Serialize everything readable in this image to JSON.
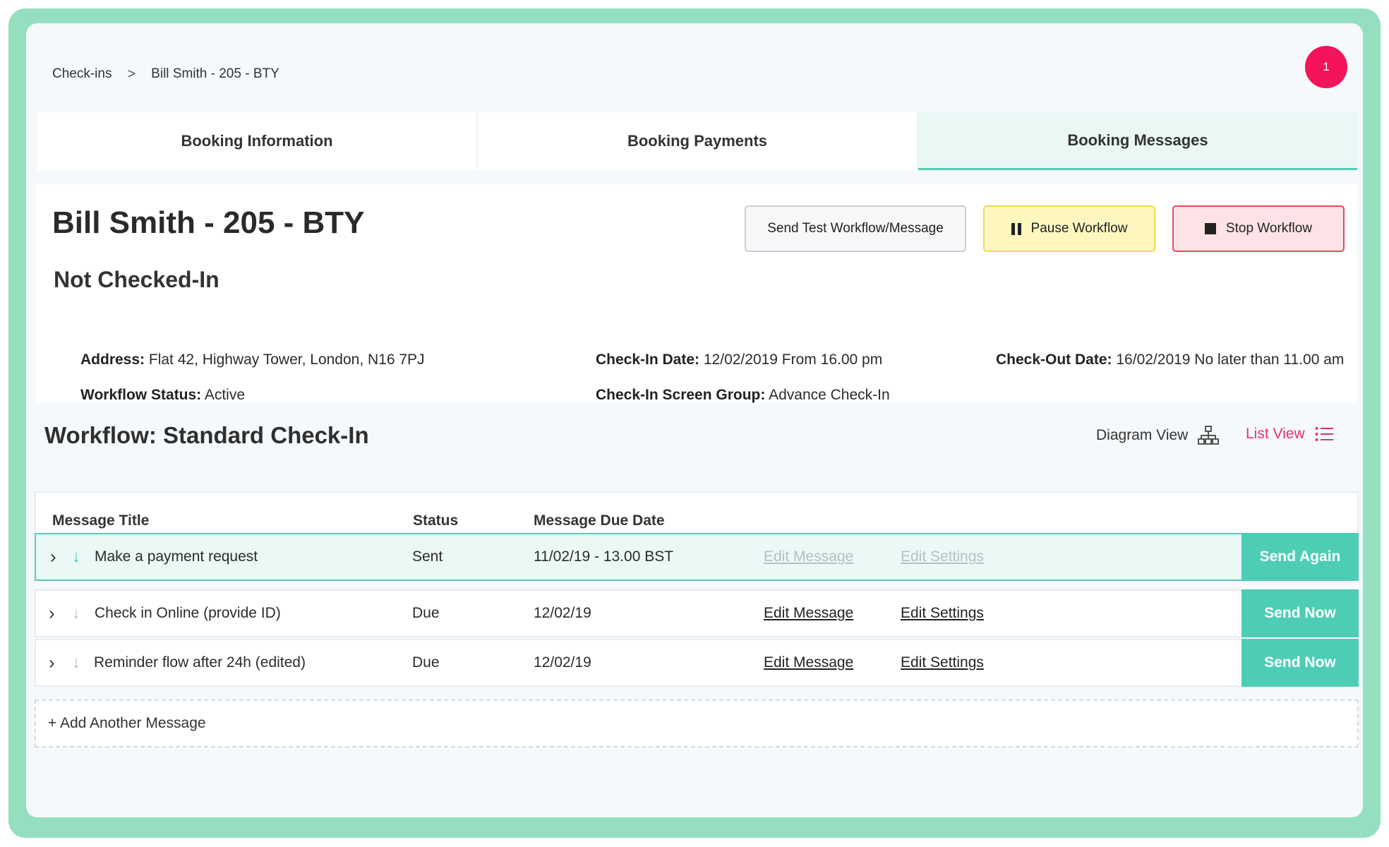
{
  "breadcrumb": {
    "items": [
      "Check-ins",
      "Bill Smith - 205 - BTY"
    ],
    "separator": ">"
  },
  "notification": {
    "count": "1",
    "color": "#f5135b"
  },
  "tabs": [
    {
      "label": "Booking Information",
      "active": false
    },
    {
      "label": "Booking Payments",
      "active": false
    },
    {
      "label": "Booking Messages",
      "active": true
    }
  ],
  "booking": {
    "title": "Bill Smith - 205 - BTY",
    "checkin_status": "Not Checked-In",
    "address_label": "Address:",
    "address": "Flat 42, Highway Tower, London, N16 7PJ",
    "workflow_status_label": "Workflow Status:",
    "workflow_status": "Active",
    "checkin_date_label": "Check-In Date:",
    "checkin_date": "12/02/2019 From 16.00 pm",
    "screen_group_label": "Check-In Screen Group:",
    "screen_group": "Advance Check-In",
    "checkout_date_label": "Check-Out Date:",
    "checkout_date": "16/02/2019 No later than 11.00 am"
  },
  "actions": {
    "send_test": "Send Test Workflow/Message",
    "pause": "Pause Workflow",
    "stop": "Stop Workflow"
  },
  "workflow": {
    "title": "Workflow: Standard Check-In",
    "diagram_view": "Diagram View",
    "list_view": "List View",
    "accent_color": "#e8306e"
  },
  "table": {
    "headers": {
      "title": "Message Title",
      "status": "Status",
      "due_date": "Message Due Date"
    },
    "rows": [
      {
        "title": "Make a payment request",
        "status": "Sent",
        "due": "11/02/19 - 13.00 BST",
        "edit_message": "Edit Message",
        "edit_settings": "Edit Settings",
        "action": "Send Again"
      },
      {
        "title": "Check in Online (provide ID)",
        "status": "Due",
        "due": "12/02/19",
        "edit_message": "Edit Message",
        "edit_settings": "Edit Settings",
        "action": "Send Now"
      },
      {
        "title": "Reminder flow after 24h (edited)",
        "status": "Due",
        "due": "12/02/19",
        "edit_message": "Edit Message",
        "edit_settings": "Edit Settings",
        "action": "Send Now"
      }
    ]
  },
  "add_message": "+ Add Another Message",
  "colors": {
    "frame": "#93dfbf",
    "teal": "#4ecdb5"
  }
}
